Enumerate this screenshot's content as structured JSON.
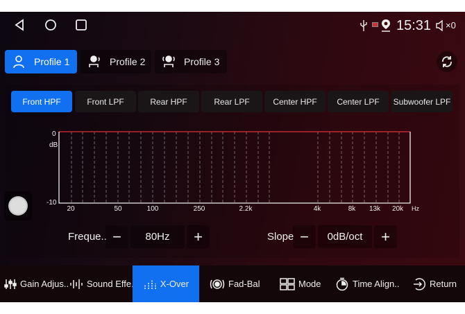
{
  "status_bar": {
    "time": "15:31",
    "volume": "×0",
    "icons": [
      "usb-icon",
      "cast-icon",
      "location-icon",
      "volume-mute-icon"
    ]
  },
  "nav": {
    "icons": [
      "back-icon",
      "home-icon",
      "recents-icon"
    ]
  },
  "profiles": [
    {
      "label": "Profile 1",
      "active": true
    },
    {
      "label": "Profile 2",
      "active": false
    },
    {
      "label": "Profile 3",
      "active": false
    }
  ],
  "filter_tabs": [
    {
      "label": "Front HPF",
      "active": true
    },
    {
      "label": "Front LPF"
    },
    {
      "label": "Rear HPF"
    },
    {
      "label": "Rear LPF"
    },
    {
      "label": "Center HPF"
    },
    {
      "label": "Center LPF"
    },
    {
      "label": "Subwoofer LPF"
    }
  ],
  "chart_data": {
    "type": "line",
    "y_ticks": [
      "0",
      "-10"
    ],
    "y_unit": "dB",
    "ylim": [
      -10,
      0
    ],
    "x_ticks": [
      "20",
      "50",
      "100",
      "250",
      "2.2k",
      "4k",
      "8k",
      "13k",
      "20k"
    ],
    "x_unit": "Hz",
    "grid": true,
    "series": [
      {
        "values_db": 0,
        "color": "#c0282e"
      }
    ]
  },
  "controls": {
    "frequency": {
      "label": "Freque..",
      "value": "80Hz",
      "minus": "−",
      "plus": "+"
    },
    "slope": {
      "label": "Slope",
      "value": "0dB/oct",
      "minus": "−",
      "plus": "+"
    }
  },
  "bottom_nav": [
    {
      "label": "Gain Adjus..",
      "icon": "sliders-icon"
    },
    {
      "label": "Sound Effe..",
      "icon": "waveform-icon"
    },
    {
      "label": "X-Over",
      "icon": "equalizer-icon",
      "active": true
    },
    {
      "label": "Fad-Bal",
      "icon": "fader-balance-icon"
    },
    {
      "label": "Mode",
      "icon": "mode-icon"
    },
    {
      "label": "Time Align..",
      "icon": "timer-icon"
    },
    {
      "label": "Return",
      "icon": "return-icon"
    }
  ],
  "colors": {
    "accent": "#1170f0",
    "curve": "#c0282e"
  }
}
